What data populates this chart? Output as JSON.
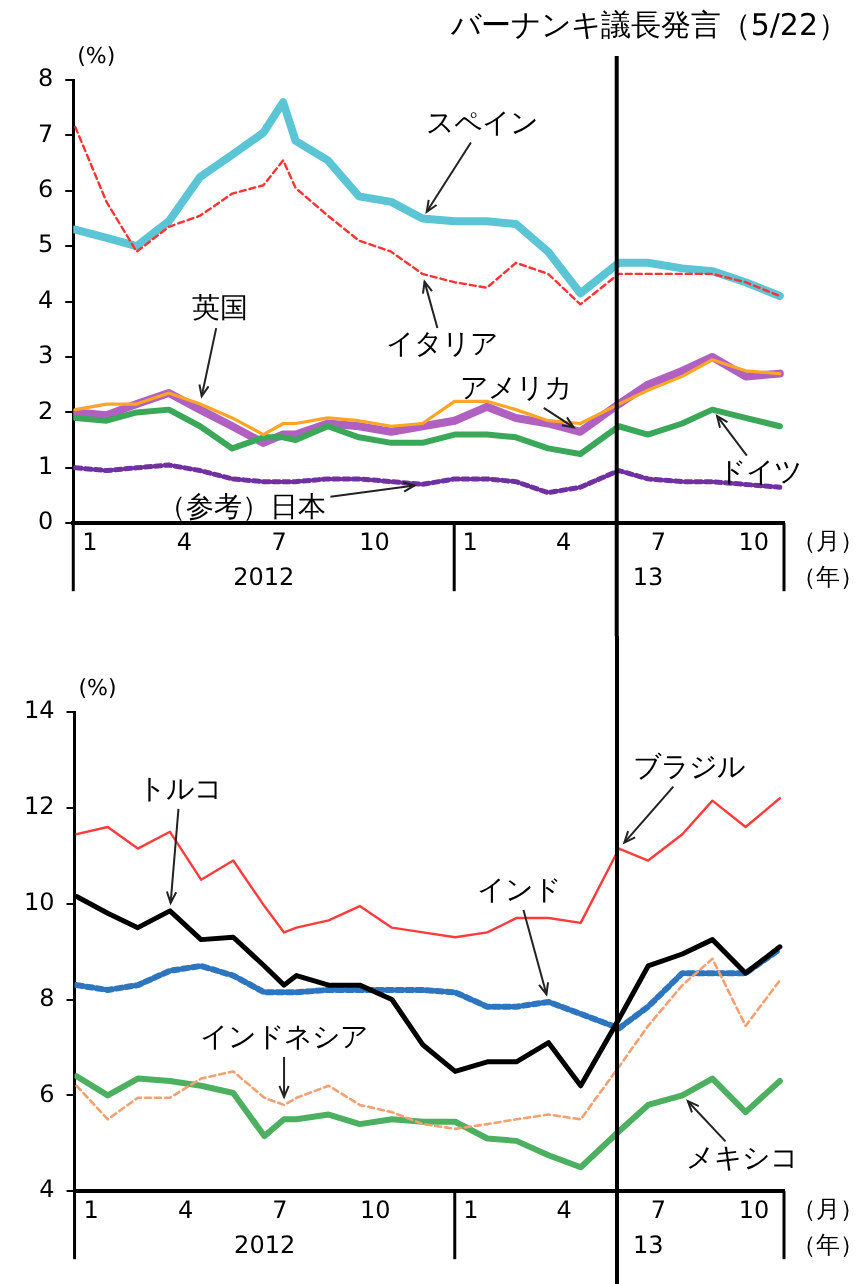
{
  "chart_data": [
    {
      "type": "line",
      "ylabel": "(%)",
      "xlabel": "（月）",
      "annotations": [
        "2012",
        "13",
        "（年）"
      ],
      "x": [
        "2011-12-18",
        "2012-01-17",
        "2012-02-15",
        "2012-03-17",
        "2012-04-16",
        "2012-05-17",
        "2012-06-16",
        "2012-07-05",
        "2012-07-17",
        "2012-08-17",
        "2012-09-16",
        "2012-10-17",
        "2012-11-16",
        "2012-12-17",
        "2013-01-17",
        "2013-02-14",
        "2013-03-17",
        "2013-04-17",
        "2013-05-24",
        "2013-06-21",
        "2013-07-24",
        "2013-08-22",
        "2013-09-23",
        "2013-10-26"
      ],
      "xlim": [
        "2011-12-16",
        "2013-10-30"
      ],
      "xticks": [
        {
          "value": "2012-01-01",
          "label": "1"
        },
        {
          "value": "2012-04-01",
          "label": "4"
        },
        {
          "value": "2012-07-01",
          "label": "7"
        },
        {
          "value": "2012-10-01",
          "label": "10"
        },
        {
          "value": "2013-01-01",
          "label": "1"
        },
        {
          "value": "2013-04-01",
          "label": "4"
        },
        {
          "value": "2013-07-01",
          "label": "7"
        },
        {
          "value": "2013-10-01",
          "label": "10"
        }
      ],
      "ylim": [
        0,
        8
      ],
      "yticks": [
        0,
        1,
        2,
        3,
        4,
        5,
        6,
        7,
        8
      ],
      "grid": false,
      "legend": false,
      "marker": "none",
      "ref_lines": [
        {
          "axis": "x",
          "value": "2013-05-22",
          "label": "バーナンキ議長発言（5/22）",
          "color": "#000000"
        }
      ],
      "series": [
        {
          "name": "スペイン",
          "color": "#5bc5d5",
          "values": [
            5.3,
            5.15,
            5.0,
            5.45,
            6.25,
            6.65,
            7.05,
            7.6,
            6.9,
            6.55,
            5.9,
            5.8,
            5.5,
            5.45,
            5.45,
            5.4,
            4.9,
            4.15,
            4.7,
            4.7,
            4.6,
            4.55,
            4.35,
            4.1
          ]
        },
        {
          "name": "イタリア",
          "color": "#ff3333",
          "line_style": "dashed",
          "values": [
            7.15,
            5.8,
            4.9,
            5.35,
            5.55,
            5.95,
            6.1,
            6.55,
            6.05,
            5.55,
            5.1,
            4.9,
            4.5,
            4.35,
            4.25,
            4.7,
            4.5,
            3.95,
            4.5,
            4.5,
            4.5,
            4.5,
            4.35,
            4.1
          ]
        },
        {
          "name": "英国",
          "color": "#ffa526",
          "values": [
            2.05,
            2.15,
            2.15,
            2.35,
            2.15,
            1.9,
            1.6,
            1.8,
            1.8,
            1.9,
            1.85,
            1.75,
            1.8,
            2.2,
            2.2,
            2.05,
            1.85,
            1.8,
            2.15,
            2.4,
            2.65,
            2.95,
            2.75,
            2.7
          ]
        },
        {
          "name": "アメリカ",
          "color": "#b060c0",
          "values": [
            2.0,
            1.95,
            2.15,
            2.35,
            2.05,
            1.75,
            1.45,
            1.6,
            1.6,
            1.8,
            1.75,
            1.65,
            1.75,
            1.85,
            2.1,
            1.9,
            1.8,
            1.65,
            2.15,
            2.5,
            2.75,
            3.0,
            2.65,
            2.7
          ]
        },
        {
          "name": "ドイツ",
          "color": "#3aa858",
          "values": [
            1.9,
            1.85,
            2.0,
            2.05,
            1.75,
            1.35,
            1.55,
            1.55,
            1.5,
            1.75,
            1.55,
            1.45,
            1.45,
            1.6,
            1.6,
            1.55,
            1.35,
            1.25,
            1.75,
            1.6,
            1.8,
            2.05,
            1.9,
            1.75
          ]
        },
        {
          "name": "（参考）日本",
          "color": "#7030a0",
          "line_style": "dashed",
          "values": [
            1.0,
            0.95,
            1.0,
            1.05,
            0.95,
            0.8,
            0.75,
            0.75,
            0.75,
            0.8,
            0.8,
            0.75,
            0.7,
            0.8,
            0.8,
            0.75,
            0.55,
            0.65,
            0.95,
            0.8,
            0.75,
            0.75,
            0.7,
            0.65
          ]
        }
      ]
    },
    {
      "type": "line",
      "ylabel": "(%)",
      "xlabel": "（月）",
      "annotations": [
        "2012",
        "13",
        "（年）"
      ],
      "x": [
        "2011-12-18",
        "2012-01-17",
        "2012-02-15",
        "2012-03-17",
        "2012-04-16",
        "2012-05-17",
        "2012-06-16",
        "2012-07-05",
        "2012-07-17",
        "2012-08-17",
        "2012-09-16",
        "2012-10-17",
        "2012-11-16",
        "2012-12-17",
        "2013-01-17",
        "2013-02-14",
        "2013-03-17",
        "2013-04-17",
        "2013-05-24",
        "2013-06-21",
        "2013-07-24",
        "2013-08-22",
        "2013-09-23",
        "2013-10-26"
      ],
      "xlim": [
        "2011-12-16",
        "2013-10-30"
      ],
      "xticks": [
        {
          "value": "2012-01-01",
          "label": "1"
        },
        {
          "value": "2012-04-01",
          "label": "4"
        },
        {
          "value": "2012-07-01",
          "label": "7"
        },
        {
          "value": "2012-10-01",
          "label": "10"
        },
        {
          "value": "2013-01-01",
          "label": "1"
        },
        {
          "value": "2013-04-01",
          "label": "4"
        },
        {
          "value": "2013-07-01",
          "label": "7"
        },
        {
          "value": "2013-10-01",
          "label": "10"
        }
      ],
      "ylim": [
        4,
        14
      ],
      "yticks": [
        4,
        6,
        8,
        10,
        12,
        14
      ],
      "grid": false,
      "legend": false,
      "marker": "none",
      "ref_lines": [
        {
          "axis": "x",
          "value": "2013-05-22",
          "color": "#000000"
        }
      ],
      "series": [
        {
          "name": "ブラジル",
          "color": "#ff3b3b",
          "values": [
            11.45,
            11.6,
            11.15,
            11.5,
            10.5,
            10.9,
            9.95,
            9.4,
            9.5,
            9.65,
            9.95,
            9.5,
            9.4,
            9.3,
            9.4,
            9.7,
            9.7,
            9.6,
            11.15,
            10.9,
            11.45,
            12.15,
            11.6,
            12.2
          ]
        },
        {
          "name": "トルコ",
          "color": "#000000",
          "values": [
            10.15,
            9.8,
            9.5,
            9.85,
            9.25,
            9.3,
            8.7,
            8.3,
            8.5,
            8.3,
            8.3,
            8.0,
            7.05,
            6.5,
            6.7,
            6.7,
            7.1,
            6.2,
            7.6,
            8.7,
            8.95,
            9.25,
            8.55,
            9.1
          ]
        },
        {
          "name": "インド",
          "color": "#2e75c0",
          "line_style": "dashed",
          "values": [
            8.3,
            8.2,
            8.3,
            8.6,
            8.7,
            8.5,
            8.15,
            8.15,
            8.15,
            8.2,
            8.2,
            8.2,
            8.2,
            8.15,
            7.85,
            7.85,
            7.95,
            7.7,
            7.4,
            7.85,
            8.55,
            8.55,
            8.55,
            9.05
          ]
        },
        {
          "name": "インドネシア",
          "color": "#f4a070",
          "line_style": "dashed",
          "values": [
            6.2,
            5.5,
            5.95,
            5.95,
            6.35,
            6.5,
            5.95,
            5.8,
            5.95,
            6.2,
            5.8,
            5.65,
            5.4,
            5.3,
            5.4,
            5.5,
            5.6,
            5.5,
            6.6,
            7.45,
            8.3,
            8.85,
            7.45,
            8.4
          ]
        },
        {
          "name": "メキシコ",
          "color": "#4cb060",
          "values": [
            6.4,
            6.0,
            6.35,
            6.3,
            6.2,
            6.05,
            5.15,
            5.5,
            5.5,
            5.6,
            5.4,
            5.5,
            5.45,
            5.45,
            5.1,
            5.05,
            4.75,
            4.5,
            5.25,
            5.8,
            6.0,
            6.35,
            5.65,
            6.3
          ]
        }
      ]
    }
  ]
}
